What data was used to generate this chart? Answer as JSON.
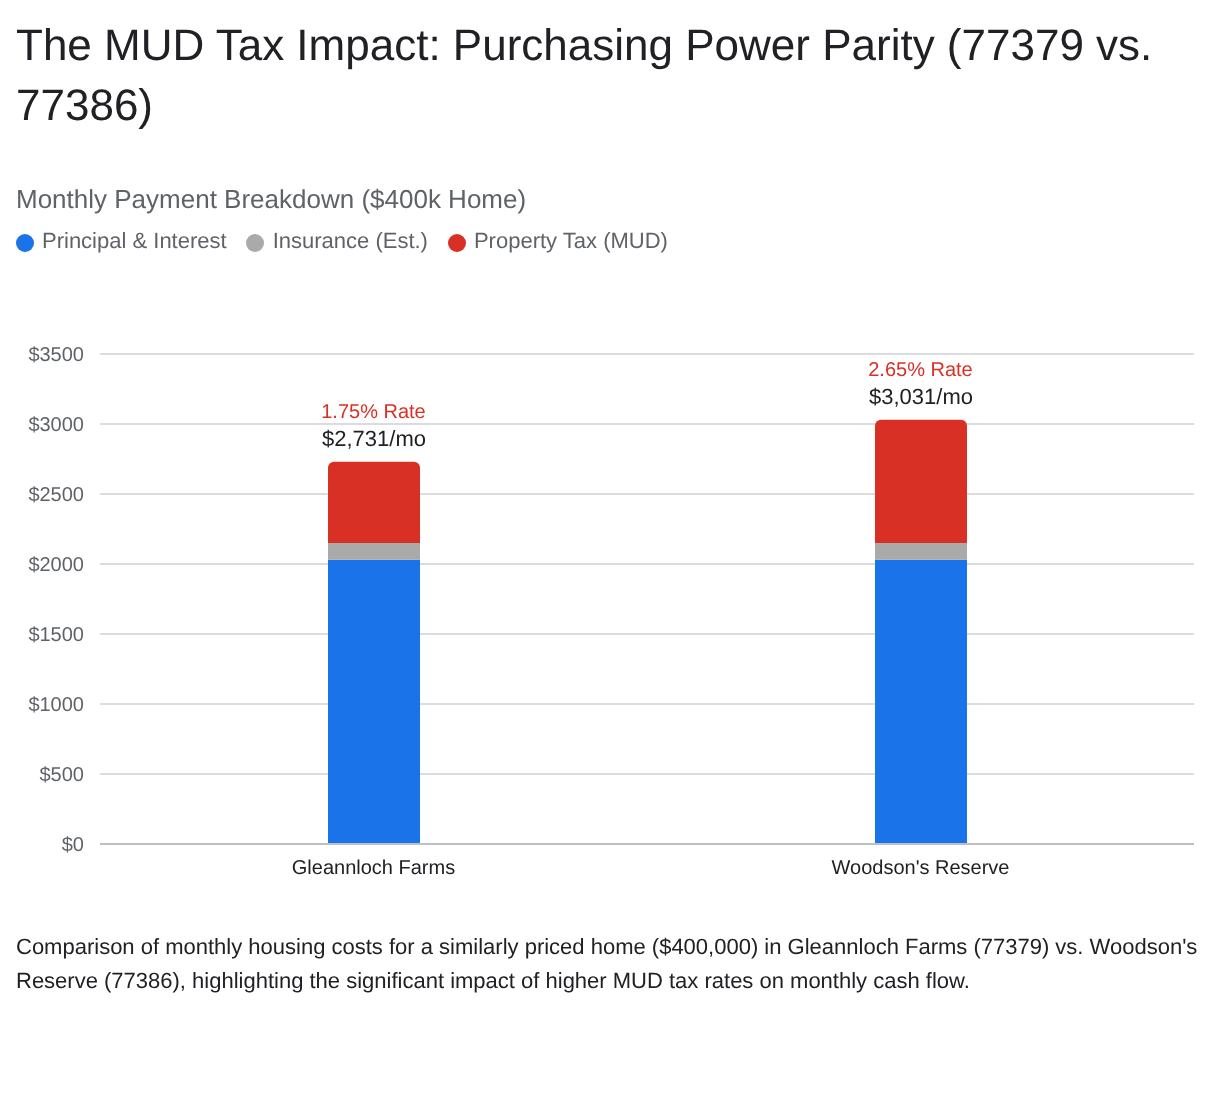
{
  "chart_data": {
    "type": "bar",
    "title": "The MUD Tax Impact: Purchasing Power Parity (77379 vs. 77386)",
    "subtitle": "Monthly Payment Breakdown ($400k Home)",
    "categories": [
      "Gleannloch Farms",
      "Woodson's Reserve"
    ],
    "series": [
      {
        "name": "Principal & Interest",
        "color": "#1a73e8",
        "values": [
          2030,
          2030
        ]
      },
      {
        "name": "Insurance (Est.)",
        "color": "#aaaaaa",
        "values": [
          120,
          120
        ]
      },
      {
        "name": "Property Tax (MUD)",
        "color": "#d93025",
        "values": [
          580,
          880
        ]
      }
    ],
    "stacked": true,
    "totals": [
      "$2,731/mo",
      "$3,031/mo"
    ],
    "ylim": [
      0,
      3500
    ],
    "yticks": [
      {
        "value": 0,
        "label": "$0"
      },
      {
        "value": 500,
        "label": "$500"
      },
      {
        "value": 1000,
        "label": "$1000"
      },
      {
        "value": 1500,
        "label": "$1500"
      },
      {
        "value": 2000,
        "label": "$2000"
      },
      {
        "value": 2500,
        "label": "$2500"
      },
      {
        "value": 3000,
        "label": "$3000"
      },
      {
        "value": 3500,
        "label": "$3500"
      }
    ],
    "grid": "y",
    "legend": "top left",
    "annotations": [
      {
        "text": "1.75% Rate",
        "x": "Gleannloch Farms",
        "y": 2731
      },
      {
        "text": "2.65% Rate",
        "x": "Woodson's Reserve",
        "y": 3031
      },
      "Comparison of monthly housing costs for a similarly priced home ($400,000) in Gleannloch Farms (77379) vs. Woodson's Reserve (77386), highlighting the significant impact of higher MUD tax rates on monthly cash flow."
    ]
  }
}
